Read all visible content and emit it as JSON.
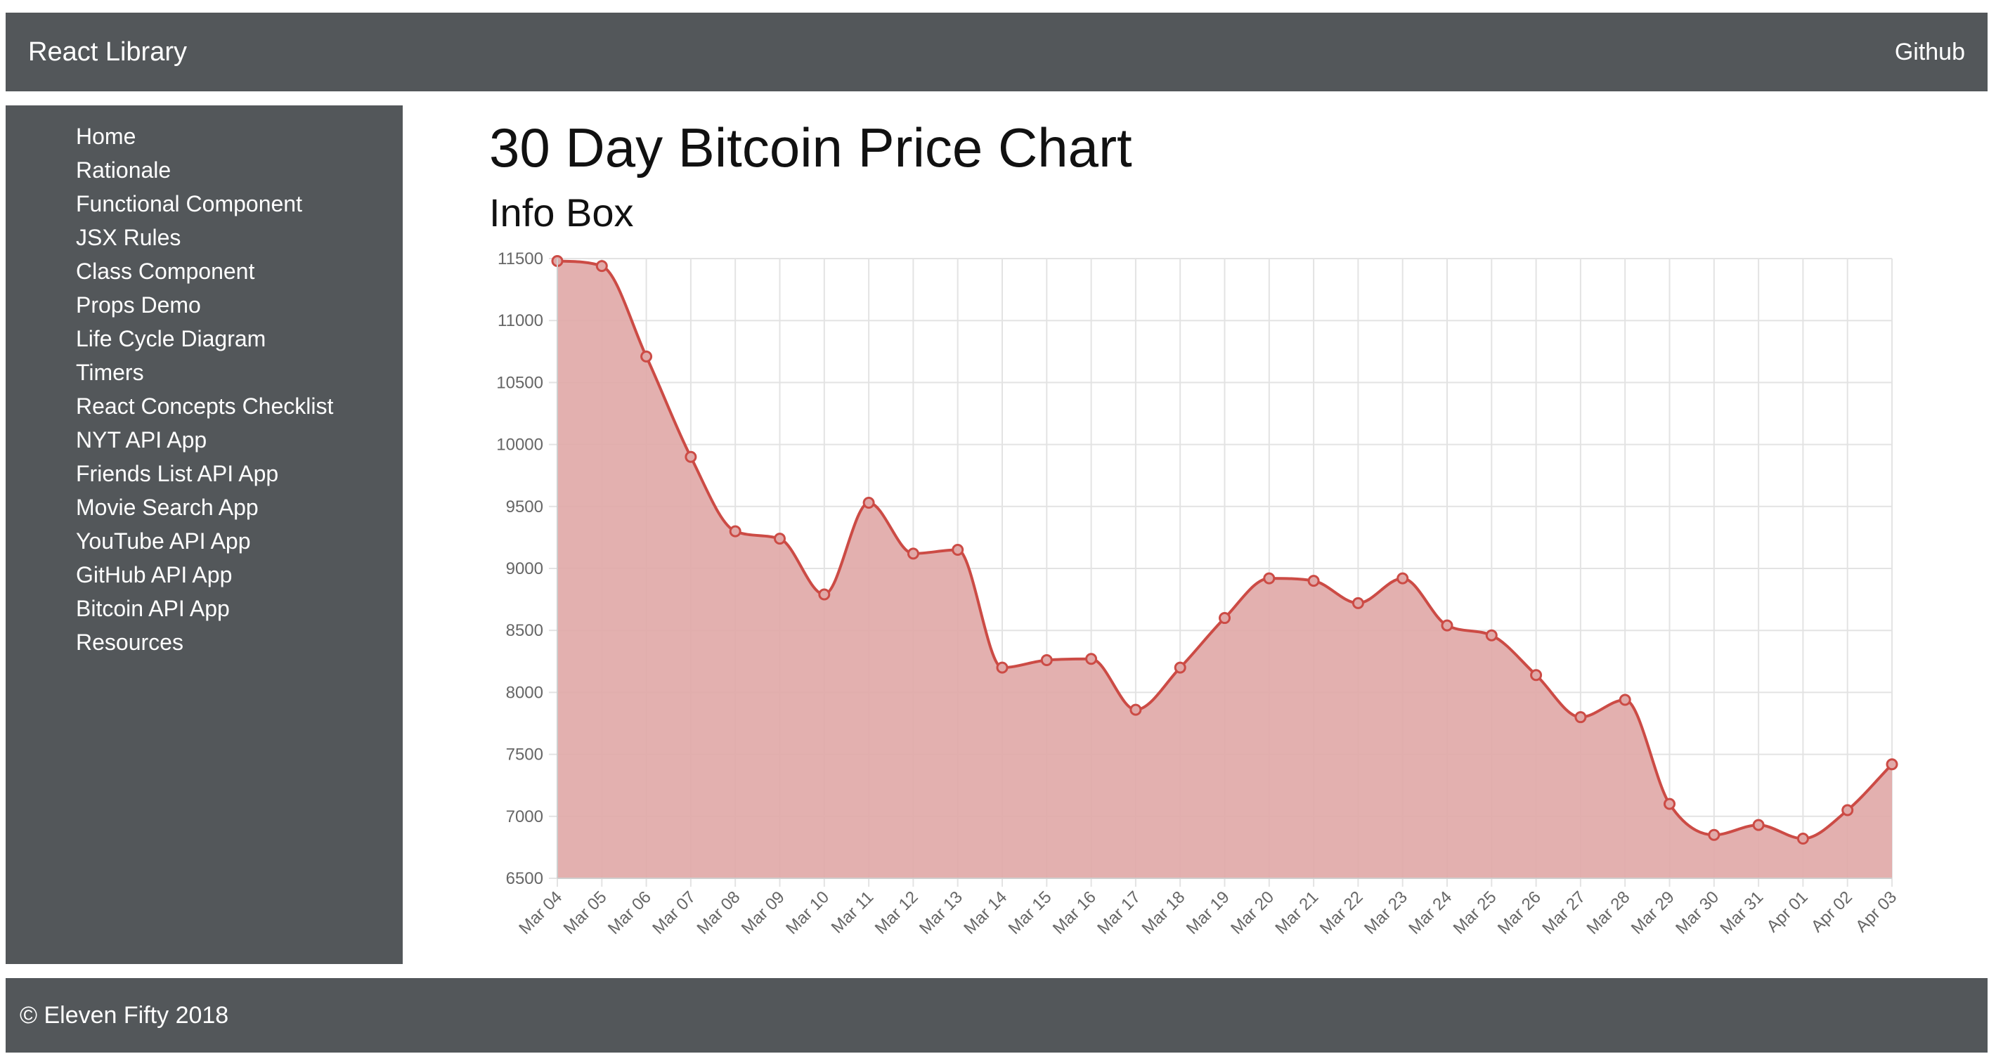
{
  "navbar": {
    "brand": "React Library",
    "github_label": "Github"
  },
  "sidebar": {
    "items": [
      {
        "label": "Home"
      },
      {
        "label": "Rationale"
      },
      {
        "label": "Functional Component"
      },
      {
        "label": "JSX Rules"
      },
      {
        "label": "Class Component"
      },
      {
        "label": "Props Demo"
      },
      {
        "label": "Life Cycle Diagram"
      },
      {
        "label": "Timers"
      },
      {
        "label": "React Concepts Checklist"
      },
      {
        "label": "NYT API App"
      },
      {
        "label": "Friends List API App"
      },
      {
        "label": "Movie Search App"
      },
      {
        "label": "YouTube API App"
      },
      {
        "label": "GitHub API App"
      },
      {
        "label": "Bitcoin API App"
      },
      {
        "label": "Resources"
      }
    ]
  },
  "main": {
    "title": "30 Day Bitcoin Price Chart",
    "subtitle": "Info Box"
  },
  "footer": {
    "text": "© Eleven Fifty 2018"
  },
  "colors": {
    "series_fill": "#e1a9a8",
    "series_line": "#cc4b45",
    "nav_bg": "#53575a"
  },
  "chart_data": {
    "type": "area",
    "x": [
      "Mar 04",
      "Mar 05",
      "Mar 06",
      "Mar 07",
      "Mar 08",
      "Mar 09",
      "Mar 10",
      "Mar 11",
      "Mar 12",
      "Mar 13",
      "Mar 14",
      "Mar 15",
      "Mar 16",
      "Mar 17",
      "Mar 18",
      "Mar 19",
      "Mar 20",
      "Mar 21",
      "Mar 22",
      "Mar 23",
      "Mar 24",
      "Mar 25",
      "Mar 26",
      "Mar 27",
      "Mar 28",
      "Mar 29",
      "Mar 30",
      "Mar 31",
      "Apr 01",
      "Apr 02",
      "Apr 03"
    ],
    "values": [
      11480,
      11440,
      10710,
      9900,
      9300,
      9240,
      8790,
      9530,
      9120,
      9150,
      8200,
      8260,
      8270,
      7860,
      8200,
      8600,
      8920,
      8900,
      8720,
      8920,
      8540,
      8460,
      8140,
      7800,
      7940,
      7100,
      6850,
      6930,
      6820,
      7050,
      7420
    ],
    "ylim": [
      6500,
      11500
    ],
    "yticks": [
      11500,
      11000,
      10500,
      10000,
      9500,
      9000,
      8500,
      8000,
      7500,
      7000,
      6500
    ],
    "grid": true,
    "legend": "none"
  }
}
